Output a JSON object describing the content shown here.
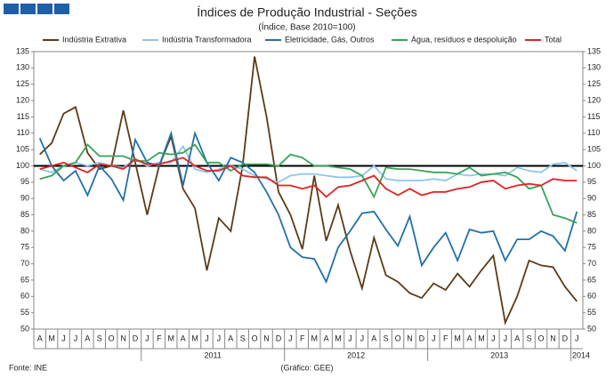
{
  "chart_data": {
    "type": "line",
    "title": "Índices de Produção Industrial - Seções",
    "subtitle": "(Índice, Base 2010=100)",
    "categories": [
      "A",
      "M",
      "J",
      "J",
      "A",
      "S",
      "O",
      "N",
      "D",
      "J",
      "F",
      "M",
      "A",
      "M",
      "J",
      "J",
      "A",
      "S",
      "O",
      "N",
      "D",
      "J",
      "F",
      "M",
      "A",
      "M",
      "J",
      "J",
      "A",
      "S",
      "O",
      "N",
      "D",
      "J",
      "F",
      "M",
      "A",
      "M",
      "J",
      "J",
      "A",
      "S",
      "O",
      "N",
      "D",
      "J"
    ],
    "year_labels": [
      "2011",
      "2012",
      "2013",
      "2014"
    ],
    "series": [
      {
        "name": "Indústria Extrativa",
        "color": "#5c3a17",
        "values": [
          103.5,
          107,
          116,
          118,
          104,
          99,
          100,
          117,
          101,
          85,
          100,
          109,
          93,
          87,
          68,
          84,
          80,
          100,
          133.5,
          115,
          92,
          85,
          74.5,
          97,
          77,
          88,
          74,
          62.5,
          78,
          66.5,
          64.5,
          61,
          59.5,
          64,
          62,
          67,
          63,
          68,
          72.5,
          52,
          60,
          71,
          69.5,
          69,
          63,
          58.5
        ]
      },
      {
        "name": "Indústria Transformadora",
        "color": "#8ec5ea",
        "values": [
          99,
          98,
          100,
          101,
          100,
          101,
          100,
          99.5,
          102,
          100,
          101,
          101,
          106,
          99,
          98,
          99,
          100,
          99,
          97,
          96,
          95,
          97,
          97.5,
          97.5,
          97,
          96.5,
          96.5,
          97,
          100,
          96,
          95.5,
          95.5,
          95.5,
          96,
          95.5,
          97.5,
          97,
          97.5,
          97.5,
          97,
          99.5,
          98.5,
          98,
          100.5,
          101,
          98.5
        ]
      },
      {
        "name": "Eletricidade, Gás, Outros",
        "color": "#2270a8",
        "values": [
          108.5,
          100,
          95.5,
          98.5,
          91,
          100,
          96,
          89.5,
          108,
          101,
          100,
          110,
          94,
          110,
          101,
          95.5,
          102.5,
          101,
          98,
          92,
          85,
          75,
          72,
          71.5,
          64.5,
          75,
          80,
          85.5,
          86,
          80.5,
          75.5,
          84.5,
          69.5,
          75,
          79.5,
          71,
          80.5,
          79.5,
          80,
          71,
          77.5,
          77.5,
          80,
          78.5,
          74,
          86
        ]
      },
      {
        "name": "Água, resíduos e despoluição",
        "color": "#38a35a",
        "values": [
          96,
          97,
          100,
          101,
          106.5,
          103,
          103,
          103,
          101.5,
          101.5,
          104,
          103.5,
          104,
          106.5,
          101,
          101,
          98.5,
          100.5,
          100.5,
          100.5,
          100,
          103.5,
          102.5,
          100,
          100,
          99.5,
          99,
          97,
          90.5,
          99.5,
          99,
          99,
          98.5,
          98,
          98,
          97.5,
          99.5,
          97,
          97.5,
          98,
          96.5,
          93,
          94,
          85,
          84,
          82.5
        ]
      },
      {
        "name": "Total",
        "color": "#e02222",
        "values": [
          99,
          100,
          101,
          99.5,
          98,
          100.5,
          100,
          99,
          102,
          100.5,
          100.5,
          101.5,
          102.5,
          100,
          98.5,
          98.5,
          100,
          97,
          96.5,
          96.5,
          94,
          94,
          93,
          94,
          90.5,
          93.5,
          94,
          95.5,
          97,
          93,
          91,
          93,
          91,
          92,
          92,
          93,
          93.5,
          95,
          95.5,
          93,
          94,
          94.5,
          94,
          96,
          95.5,
          95.5
        ]
      }
    ],
    "ylim": [
      50,
      135
    ],
    "yticks": [
      50,
      55,
      60,
      65,
      70,
      75,
      80,
      85,
      90,
      95,
      100,
      105,
      110,
      115,
      120,
      125,
      130,
      135
    ],
    "y2lim": [
      50,
      135
    ],
    "y2ticks": [
      50,
      55,
      60,
      65,
      70,
      75,
      80,
      85,
      90,
      95,
      100,
      105,
      110,
      115,
      120,
      125,
      130,
      135
    ],
    "reference_line": 100,
    "legend": "top",
    "grid": false,
    "source": "Fonte: INE",
    "credit": "(Gráfico: GEE)"
  }
}
